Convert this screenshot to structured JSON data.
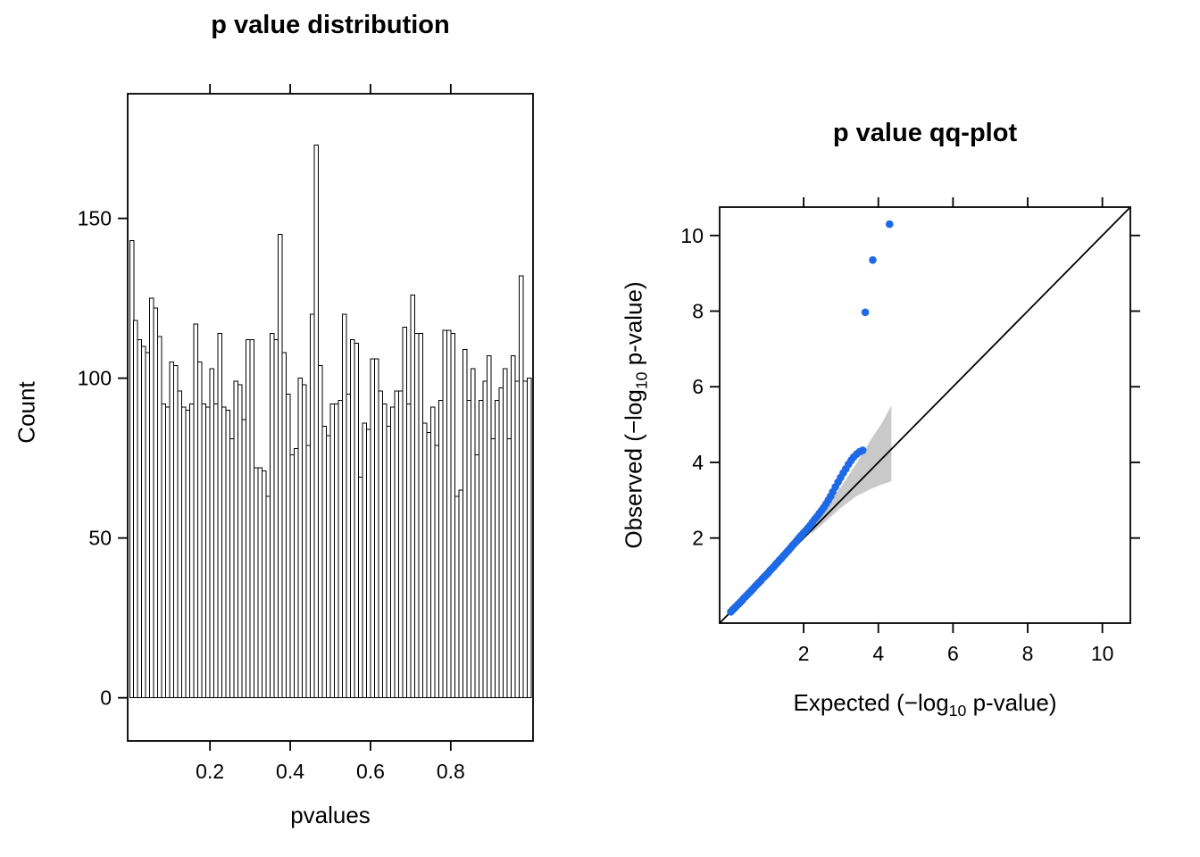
{
  "page": {
    "background": "#ffffff",
    "foreground": "#000000"
  },
  "chart_data": [
    {
      "type": "bar",
      "subtype": "histogram",
      "title": "p value distribution",
      "xlabel": "pvalues",
      "ylabel": "Count",
      "bin_start": 0,
      "bin_width": 0.01,
      "values": [
        143,
        118,
        112,
        110,
        108,
        125,
        122,
        113,
        92,
        91,
        105,
        104,
        96,
        91,
        90,
        92,
        117,
        105,
        92,
        91,
        103,
        92,
        114,
        91,
        90,
        81,
        99,
        98,
        87,
        112,
        112,
        72,
        72,
        71,
        63,
        114,
        112,
        145,
        108,
        95,
        76,
        78,
        100,
        98,
        79,
        120,
        173,
        104,
        85,
        82,
        92,
        92,
        93,
        120,
        95,
        112,
        111,
        69,
        86,
        84,
        106,
        106,
        96,
        92,
        85,
        91,
        96,
        96,
        116,
        92,
        126,
        114,
        114,
        86,
        83,
        91,
        79,
        93,
        115,
        115,
        114,
        63,
        65,
        109,
        93,
        103,
        76,
        93,
        99,
        107,
        81,
        93,
        97,
        103,
        81,
        107,
        99,
        132,
        99,
        100
      ],
      "xlim": [
        -0.005,
        1.005
      ],
      "ylim": [
        -13.5,
        189
      ],
      "x_ticks": [
        0.2,
        0.4,
        0.6,
        0.8
      ],
      "y_ticks": [
        0,
        50,
        100,
        150
      ],
      "grid": false,
      "bar_fill": "#ffffff",
      "bar_stroke": "#000000"
    },
    {
      "type": "scatter",
      "subtype": "qq-plot",
      "title": "p value qq-plot",
      "xlabel": {
        "pre": "Expected (−log",
        "sub": "10",
        "post": " p-value)"
      },
      "ylabel": {
        "pre": "Observed (−log",
        "sub": "10",
        "post": " p-value)"
      },
      "lim": [
        -0.25,
        10.75
      ],
      "x_ticks": [
        2,
        4,
        6,
        8,
        10
      ],
      "y_ticks": [
        2,
        4,
        6,
        8,
        10
      ],
      "grid": false,
      "point_color": "#1e6ae6",
      "band_color": "#c9c9c9",
      "identity_line": {
        "from": -0.25,
        "to": 10.75,
        "color": "#000000"
      },
      "band": {
        "x": [
          2.2,
          2.6,
          3.0,
          3.4,
          3.8,
          4.1,
          4.35
        ],
        "upper": [
          2.35,
          2.85,
          3.35,
          3.95,
          4.6,
          5.05,
          5.5
        ],
        "lower": [
          2.1,
          2.45,
          2.8,
          3.1,
          3.3,
          3.42,
          3.5
        ]
      },
      "points": [
        [
          0.05,
          0.05
        ],
        [
          0.1,
          0.1
        ],
        [
          0.15,
          0.15
        ],
        [
          0.2,
          0.2
        ],
        [
          0.25,
          0.25
        ],
        [
          0.3,
          0.3
        ],
        [
          0.35,
          0.35
        ],
        [
          0.4,
          0.41
        ],
        [
          0.45,
          0.46
        ],
        [
          0.5,
          0.51
        ],
        [
          0.55,
          0.56
        ],
        [
          0.6,
          0.61
        ],
        [
          0.65,
          0.66
        ],
        [
          0.7,
          0.72
        ],
        [
          0.75,
          0.77
        ],
        [
          0.8,
          0.82
        ],
        [
          0.85,
          0.87
        ],
        [
          0.9,
          0.93
        ],
        [
          0.95,
          0.98
        ],
        [
          1.0,
          1.03
        ],
        [
          1.05,
          1.08
        ],
        [
          1.1,
          1.14
        ],
        [
          1.15,
          1.19
        ],
        [
          1.2,
          1.24
        ],
        [
          1.25,
          1.3
        ],
        [
          1.3,
          1.35
        ],
        [
          1.35,
          1.41
        ],
        [
          1.4,
          1.46
        ],
        [
          1.45,
          1.52
        ],
        [
          1.5,
          1.57
        ],
        [
          1.55,
          1.63
        ],
        [
          1.6,
          1.68
        ],
        [
          1.65,
          1.74
        ],
        [
          1.7,
          1.8
        ],
        [
          1.75,
          1.85
        ],
        [
          1.8,
          1.91
        ],
        [
          1.85,
          1.97
        ],
        [
          1.9,
          2.03
        ],
        [
          1.95,
          2.08
        ],
        [
          2.0,
          2.14
        ],
        [
          2.06,
          2.2
        ],
        [
          2.12,
          2.27
        ],
        [
          2.18,
          2.34
        ],
        [
          2.24,
          2.42
        ],
        [
          2.3,
          2.5
        ],
        [
          2.36,
          2.57
        ],
        [
          2.42,
          2.65
        ],
        [
          2.48,
          2.73
        ],
        [
          2.54,
          2.81
        ],
        [
          2.6,
          2.9
        ],
        [
          2.66,
          3.0
        ],
        [
          2.72,
          3.1
        ],
        [
          2.78,
          3.22
        ],
        [
          2.85,
          3.35
        ],
        [
          2.92,
          3.48
        ],
        [
          2.99,
          3.6
        ],
        [
          3.06,
          3.72
        ],
        [
          3.13,
          3.83
        ],
        [
          3.2,
          3.95
        ],
        [
          3.27,
          4.05
        ],
        [
          3.34,
          4.14
        ],
        [
          3.42,
          4.22
        ],
        [
          3.5,
          4.28
        ],
        [
          3.58,
          4.32
        ],
        [
          3.65,
          7.97
        ],
        [
          3.85,
          9.35
        ],
        [
          4.3,
          10.3
        ]
      ]
    }
  ]
}
